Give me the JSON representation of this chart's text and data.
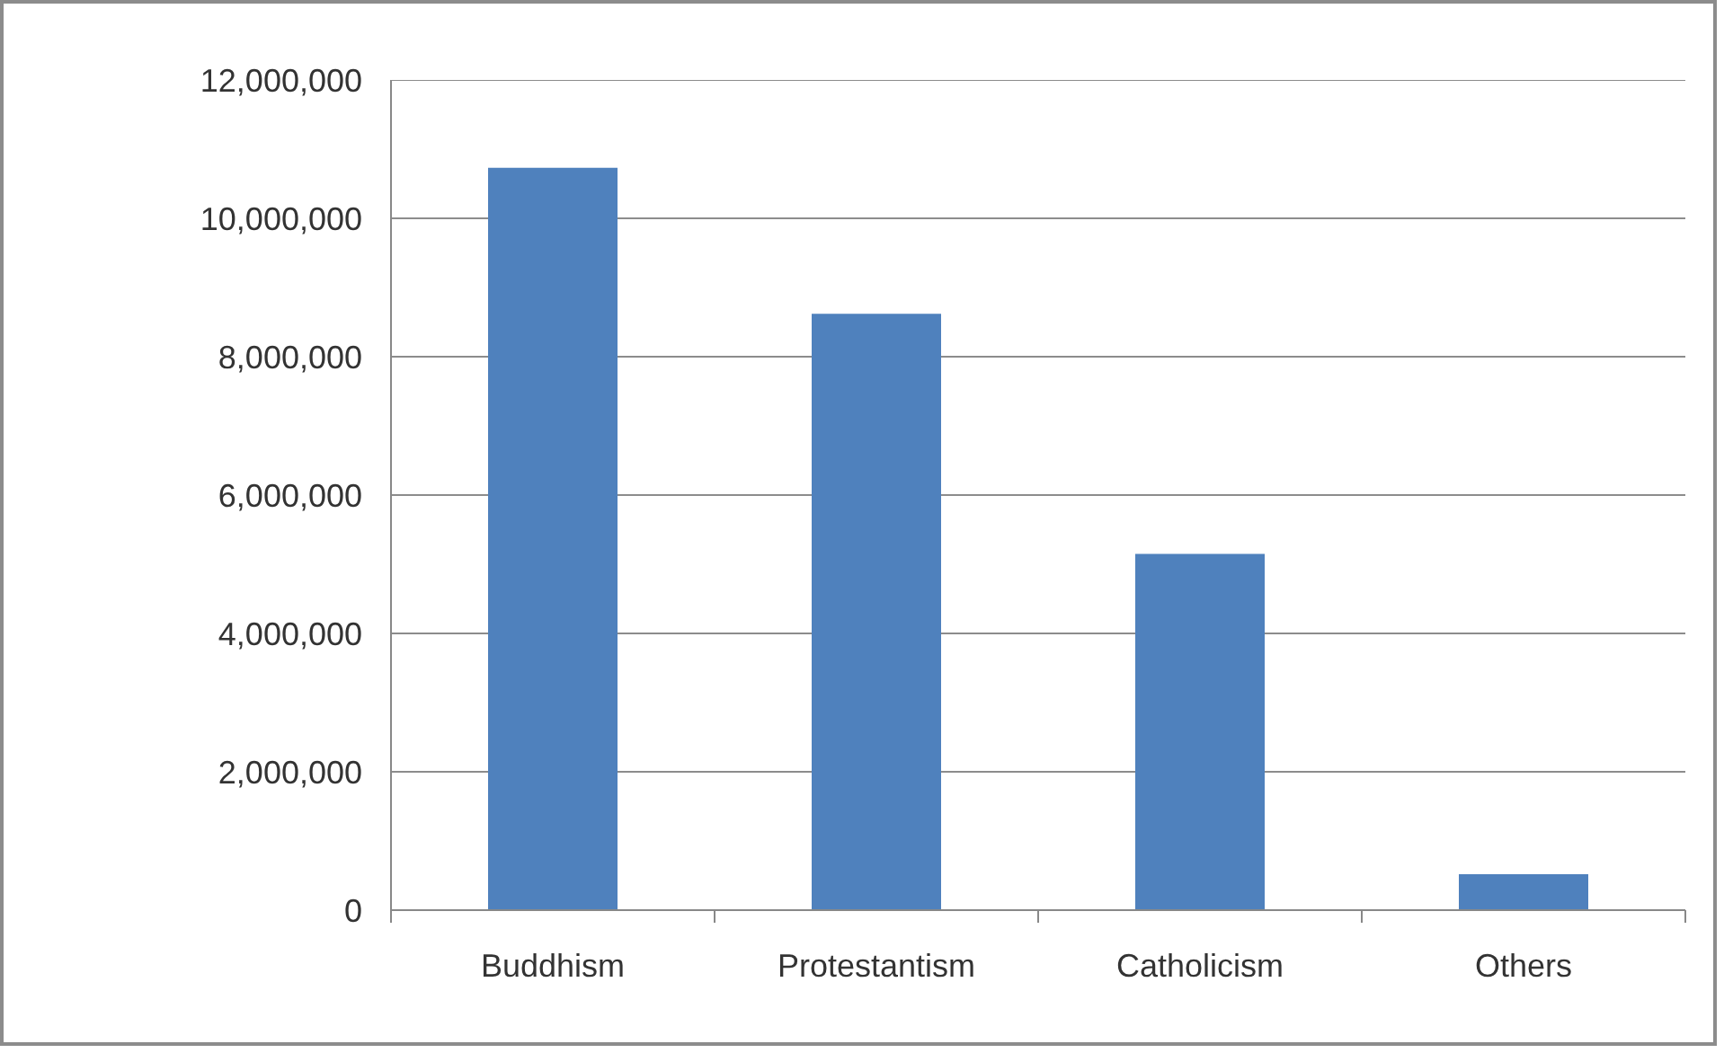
{
  "chart_data": {
    "type": "bar",
    "categories": [
      "Buddhism",
      "Protestantism",
      "Catholicism",
      "Others"
    ],
    "values": [
      10730000,
      8620000,
      5150000,
      520000
    ],
    "color": "#4f81bd",
    "ylim": [
      0,
      12000000
    ],
    "yticks": [
      {
        "value": 0,
        "label": "0"
      },
      {
        "value": 2000000,
        "label": "2,000,000"
      },
      {
        "value": 4000000,
        "label": "4,000,000"
      },
      {
        "value": 6000000,
        "label": "6,000,000"
      },
      {
        "value": 8000000,
        "label": "8,000,000"
      },
      {
        "value": 10000000,
        "label": "10,000,000"
      },
      {
        "value": 12000000,
        "label": "12,000,000"
      }
    ],
    "grid": "y"
  }
}
